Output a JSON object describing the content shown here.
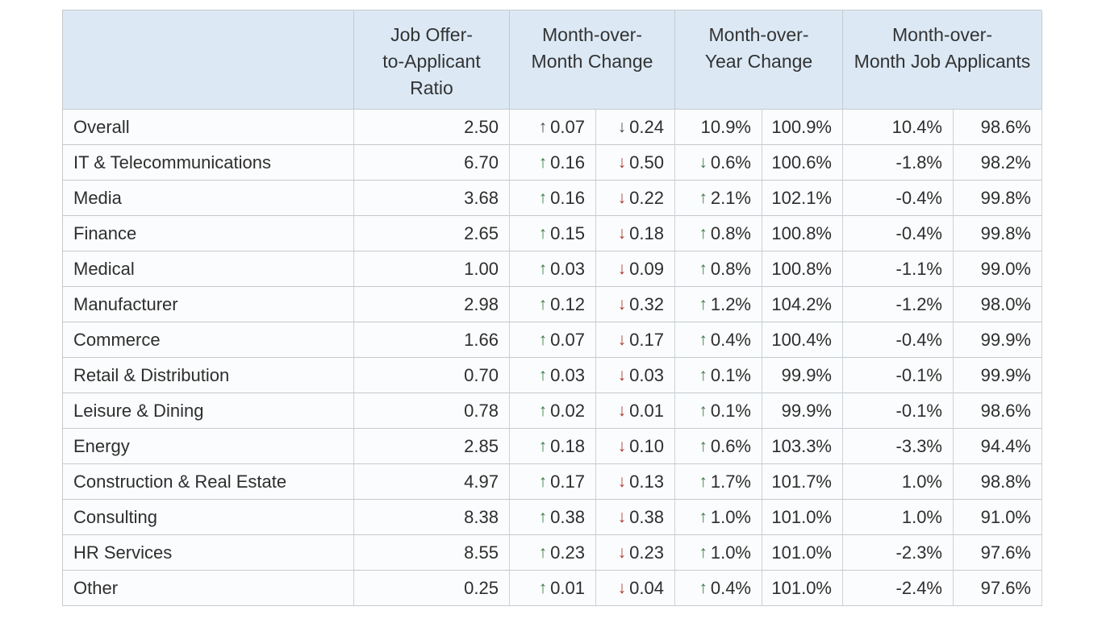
{
  "colors": {
    "header_bg": "#dce9f5",
    "row_bg": "#fbfcfd",
    "border": "#c5cace",
    "text": "#2e2e2e",
    "green": "#3a7c42",
    "red": "#a83a2f",
    "neutral": "#4a4a4a"
  },
  "icons": {
    "up": "↑",
    "down": "↓"
  },
  "table": {
    "headers": {
      "category": {
        "lines": [
          ""
        ]
      },
      "ratio": {
        "lines": [
          "Job Offer-",
          "to-Applicant",
          "Ratio"
        ]
      },
      "mom": {
        "lines": [
          "Month-over-",
          "Month Change"
        ]
      },
      "moy": {
        "lines": [
          "Month-over-",
          "Year Change"
        ]
      },
      "applicants": {
        "lines": [
          "Month-over-",
          "Month Job Applicants"
        ]
      }
    },
    "cell_names": [
      "cell-category",
      "cell-ratio",
      "cell-mom-up",
      "cell-mom-down",
      "cell-moy-change",
      "cell-moy-index",
      "cell-applicants-change",
      "cell-applicants-index"
    ],
    "rows": [
      {
        "cells": [
          {
            "t": "Overall"
          },
          {
            "t": "2.50"
          },
          {
            "t": "0.07",
            "a": "up",
            "tone": "neutral"
          },
          {
            "t": "0.24",
            "a": "down",
            "tone": "neutral"
          },
          {
            "t": "10.9%"
          },
          {
            "t": "100.9%"
          },
          {
            "t": "10.4%"
          },
          {
            "t": "98.6%"
          }
        ]
      },
      {
        "cells": [
          {
            "t": "IT & Telecommunications"
          },
          {
            "t": "6.70"
          },
          {
            "t": "0.16",
            "a": "up",
            "tone": "green"
          },
          {
            "t": "0.50",
            "a": "down",
            "tone": "red"
          },
          {
            "t": "0.6%",
            "a": "down",
            "tone": "green"
          },
          {
            "t": "100.6%"
          },
          {
            "t": "-1.8%"
          },
          {
            "t": "98.2%"
          }
        ]
      },
      {
        "cells": [
          {
            "t": "Media"
          },
          {
            "t": "3.68"
          },
          {
            "t": "0.16",
            "a": "up",
            "tone": "green"
          },
          {
            "t": "0.22",
            "a": "down",
            "tone": "red"
          },
          {
            "t": "2.1%",
            "a": "up",
            "tone": "green"
          },
          {
            "t": "102.1%"
          },
          {
            "t": "-0.4%"
          },
          {
            "t": "99.8%"
          }
        ]
      },
      {
        "cells": [
          {
            "t": "Finance"
          },
          {
            "t": "2.65"
          },
          {
            "t": "0.15",
            "a": "up",
            "tone": "green"
          },
          {
            "t": "0.18",
            "a": "down",
            "tone": "red"
          },
          {
            "t": "0.8%",
            "a": "up",
            "tone": "green"
          },
          {
            "t": "100.8%"
          },
          {
            "t": "-0.4%"
          },
          {
            "t": "99.8%"
          }
        ]
      },
      {
        "cells": [
          {
            "t": "Medical"
          },
          {
            "t": "1.00"
          },
          {
            "t": "0.03",
            "a": "up",
            "tone": "green"
          },
          {
            "t": "0.09",
            "a": "down",
            "tone": "red"
          },
          {
            "t": "0.8%",
            "a": "up",
            "tone": "green"
          },
          {
            "t": "100.8%"
          },
          {
            "t": "-1.1%"
          },
          {
            "t": "99.0%"
          }
        ]
      },
      {
        "cells": [
          {
            "t": "Manufacturer"
          },
          {
            "t": "2.98"
          },
          {
            "t": "0.12",
            "a": "up",
            "tone": "green"
          },
          {
            "t": "0.32",
            "a": "down",
            "tone": "red"
          },
          {
            "t": "1.2%",
            "a": "up",
            "tone": "green"
          },
          {
            "t": "104.2%"
          },
          {
            "t": "-1.2%"
          },
          {
            "t": "98.0%"
          }
        ]
      },
      {
        "cells": [
          {
            "t": "Commerce"
          },
          {
            "t": "1.66"
          },
          {
            "t": "0.07",
            "a": "up",
            "tone": "green"
          },
          {
            "t": "0.17",
            "a": "down",
            "tone": "red"
          },
          {
            "t": "0.4%",
            "a": "up",
            "tone": "green"
          },
          {
            "t": "100.4%"
          },
          {
            "t": "-0.4%"
          },
          {
            "t": "99.9%"
          }
        ]
      },
      {
        "cells": [
          {
            "t": "Retail & Distribution"
          },
          {
            "t": "0.70"
          },
          {
            "t": "0.03",
            "a": "up",
            "tone": "green"
          },
          {
            "t": "0.03",
            "a": "down",
            "tone": "red"
          },
          {
            "t": "0.1%",
            "a": "up",
            "tone": "green"
          },
          {
            "t": "99.9%"
          },
          {
            "t": "-0.1%"
          },
          {
            "t": "99.9%"
          }
        ]
      },
      {
        "cells": [
          {
            "t": "Leisure & Dining"
          },
          {
            "t": "0.78"
          },
          {
            "t": "0.02",
            "a": "up",
            "tone": "green"
          },
          {
            "t": "0.01",
            "a": "down",
            "tone": "red"
          },
          {
            "t": "0.1%",
            "a": "up",
            "tone": "green"
          },
          {
            "t": "99.9%"
          },
          {
            "t": "-0.1%"
          },
          {
            "t": "98.6%"
          }
        ]
      },
      {
        "cells": [
          {
            "t": "Energy"
          },
          {
            "t": "2.85"
          },
          {
            "t": "0.18",
            "a": "up",
            "tone": "green"
          },
          {
            "t": "0.10",
            "a": "down",
            "tone": "red"
          },
          {
            "t": "0.6%",
            "a": "up",
            "tone": "green"
          },
          {
            "t": "103.3%"
          },
          {
            "t": "-3.3%"
          },
          {
            "t": "94.4%"
          }
        ]
      },
      {
        "cells": [
          {
            "t": "Construction & Real Estate"
          },
          {
            "t": "4.97"
          },
          {
            "t": "0.17",
            "a": "up",
            "tone": "green"
          },
          {
            "t": "0.13",
            "a": "down",
            "tone": "red"
          },
          {
            "t": "1.7%",
            "a": "up",
            "tone": "green"
          },
          {
            "t": "101.7%"
          },
          {
            "t": "1.0%"
          },
          {
            "t": "98.8%"
          }
        ]
      },
      {
        "cells": [
          {
            "t": "Consulting"
          },
          {
            "t": "8.38"
          },
          {
            "t": "0.38",
            "a": "up",
            "tone": "green"
          },
          {
            "t": "0.38",
            "a": "down",
            "tone": "red"
          },
          {
            "t": "1.0%",
            "a": "up",
            "tone": "green"
          },
          {
            "t": "101.0%"
          },
          {
            "t": "1.0%"
          },
          {
            "t": "91.0%"
          }
        ]
      },
      {
        "cells": [
          {
            "t": "HR Services"
          },
          {
            "t": "8.55"
          },
          {
            "t": "0.23",
            "a": "up",
            "tone": "green"
          },
          {
            "t": "0.23",
            "a": "down",
            "tone": "red"
          },
          {
            "t": "1.0%",
            "a": "up",
            "tone": "green"
          },
          {
            "t": "101.0%"
          },
          {
            "t": "-2.3%"
          },
          {
            "t": "97.6%"
          }
        ]
      },
      {
        "cells": [
          {
            "t": "Other"
          },
          {
            "t": "0.25"
          },
          {
            "t": "0.01",
            "a": "up",
            "tone": "green"
          },
          {
            "t": "0.04",
            "a": "down",
            "tone": "red"
          },
          {
            "t": "0.4%",
            "a": "up",
            "tone": "green"
          },
          {
            "t": "101.0%"
          },
          {
            "t": "-2.4%"
          },
          {
            "t": "97.6%"
          }
        ]
      }
    ]
  },
  "chart_data": {
    "type": "table",
    "title": "",
    "column_groups": [
      {
        "label": "",
        "span": 1
      },
      {
        "label": "Job Offer-to-Applicant Ratio",
        "span": 1
      },
      {
        "label": "Month-over-Month Change",
        "span": 2
      },
      {
        "label": "Month-over-Year Change",
        "span": 2
      },
      {
        "label": "Month-over-Month Job Applicants",
        "span": 2
      }
    ],
    "rows": [
      [
        "Overall",
        "2.50",
        "↑0.07",
        "↓0.24",
        "10.9%",
        "100.9%",
        "10.4%",
        "98.6%"
      ],
      [
        "IT & Telecommunications",
        "6.70",
        "↑0.16",
        "↓0.50",
        "↓0.6%",
        "100.6%",
        "-1.8%",
        "98.2%"
      ],
      [
        "Media",
        "3.68",
        "↑0.16",
        "↓0.22",
        "↑2.1%",
        "102.1%",
        "-0.4%",
        "99.8%"
      ],
      [
        "Finance",
        "2.65",
        "↑0.15",
        "↓0.18",
        "↑0.8%",
        "100.8%",
        "-0.4%",
        "99.8%"
      ],
      [
        "Medical",
        "1.00",
        "↑0.03",
        "↓0.09",
        "↑0.8%",
        "100.8%",
        "-1.1%",
        "99.0%"
      ],
      [
        "Manufacturer",
        "2.98",
        "↑0.12",
        "↓0.32",
        "↑1.2%",
        "104.2%",
        "-1.2%",
        "98.0%"
      ],
      [
        "Commerce",
        "1.66",
        "↑0.07",
        "↓0.17",
        "↑0.4%",
        "100.4%",
        "-0.4%",
        "99.9%"
      ],
      [
        "Retail & Distribution",
        "0.70",
        "↑0.03",
        "↓0.03",
        "↑0.1%",
        "99.9%",
        "-0.1%",
        "99.9%"
      ],
      [
        "Leisure & Dining",
        "0.78",
        "↑0.02",
        "↓0.01",
        "↑0.1%",
        "99.9%",
        "-0.1%",
        "98.6%"
      ],
      [
        "Energy",
        "2.85",
        "↑0.18",
        "↓0.10",
        "↑0.6%",
        "103.3%",
        "-3.3%",
        "94.4%"
      ],
      [
        "Construction & Real Estate",
        "4.97",
        "↑0.17",
        "↓0.13",
        "↑1.7%",
        "101.7%",
        "1.0%",
        "98.8%"
      ],
      [
        "Consulting",
        "8.38",
        "↑0.38",
        "↓0.38",
        "↑1.0%",
        "101.0%",
        "1.0%",
        "91.0%"
      ],
      [
        "HR Services",
        "8.55",
        "↑0.23",
        "↓0.23",
        "↑1.0%",
        "101.0%",
        "-2.3%",
        "97.6%"
      ],
      [
        "Other",
        "0.25",
        "↑0.01",
        "↓0.04",
        "↑0.4%",
        "101.0%",
        "-2.4%",
        "97.6%"
      ]
    ]
  }
}
